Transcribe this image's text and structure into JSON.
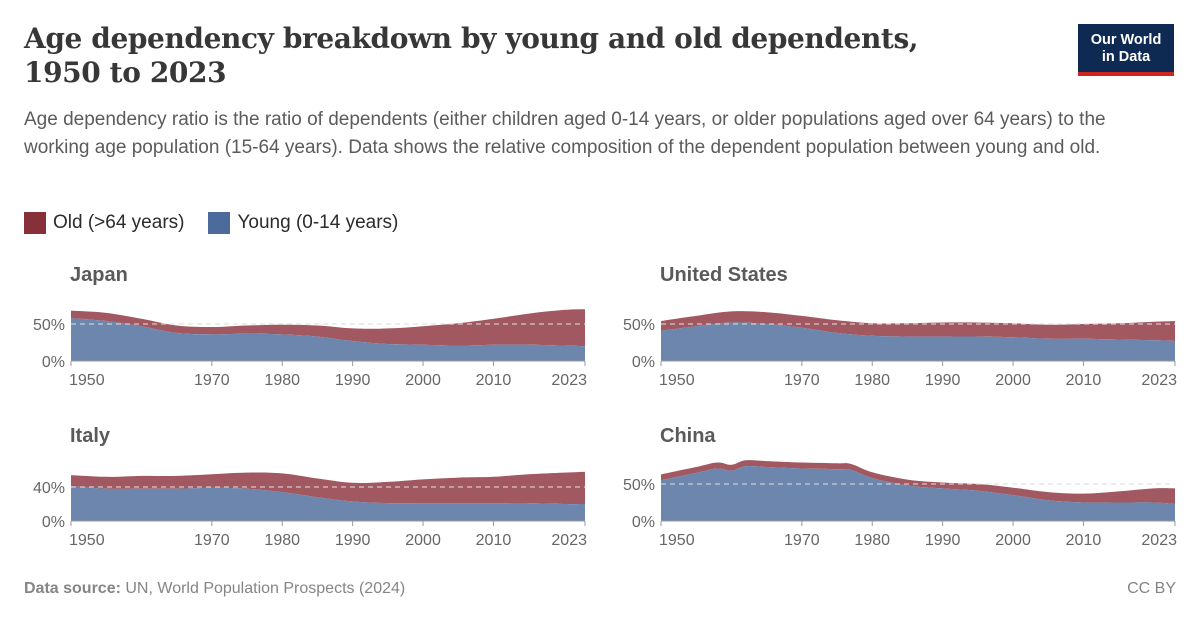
{
  "header": {
    "title": "Age dependency breakdown by young and old dependents, 1950 to 2023",
    "logo_line1": "Our World",
    "logo_line2": "in Data",
    "subtitle": "Age dependency ratio is the ratio of dependents (either children aged 0-14 years, or older populations aged over 64 years) to the working age population (15-64 years). Data shows the relative composition of the dependent population between young and old."
  },
  "legend": [
    {
      "label": "Old (>64 years)",
      "color": "#883039"
    },
    {
      "label": "Young (0-14 years)",
      "color": "#4c6a9c"
    }
  ],
  "footer": {
    "source_label": "Data source:",
    "source_text": "UN, World Population Prospects (2024)",
    "license": "CC BY"
  },
  "chart_data": [
    {
      "type": "area",
      "stacked": true,
      "title": "Japan",
      "x": [
        1950,
        1955,
        1960,
        1965,
        1970,
        1975,
        1980,
        1985,
        1990,
        1995,
        2000,
        2005,
        2010,
        2015,
        2020,
        2023
      ],
      "series": [
        {
          "name": "Young (0-14 years)",
          "values": [
            58,
            54,
            47,
            38,
            36,
            37,
            36,
            33,
            27,
            23,
            22,
            21,
            22,
            22,
            21,
            20
          ]
        },
        {
          "name": "Old (>64 years)",
          "values": [
            10,
            11,
            10,
            10,
            10,
            11,
            13,
            15,
            17,
            21,
            25,
            30,
            35,
            42,
            48,
            50
          ]
        }
      ],
      "yticks": [
        "0%",
        "50%"
      ],
      "ytick_values": [
        0,
        50
      ],
      "xticks": [
        "1950",
        "1970",
        "1980",
        "1990",
        "2000",
        "2010",
        "2023"
      ],
      "xtick_values": [
        1950,
        1970,
        1980,
        1990,
        2000,
        2010,
        2023
      ],
      "ylim": [
        0,
        80
      ]
    },
    {
      "type": "area",
      "stacked": true,
      "title": "United States",
      "x": [
        1950,
        1955,
        1960,
        1965,
        1970,
        1975,
        1980,
        1985,
        1990,
        1995,
        2000,
        2005,
        2010,
        2015,
        2020,
        2023
      ],
      "series": [
        {
          "name": "Young (0-14 years)",
          "values": [
            41,
            47,
            52,
            50,
            45,
            38,
            34,
            33,
            33,
            33,
            32,
            30,
            30,
            29,
            28,
            27
          ]
        },
        {
          "name": "Old (>64 years)",
          "values": [
            13,
            14,
            15,
            16,
            16,
            17,
            17,
            18,
            19,
            19,
            19,
            19,
            20,
            22,
            25,
            27
          ]
        }
      ],
      "yticks": [
        "0%",
        "50%"
      ],
      "ytick_values": [
        0,
        50
      ],
      "xticks": [
        "1950",
        "1970",
        "1980",
        "1990",
        "2000",
        "2010",
        "2023"
      ],
      "xtick_values": [
        1950,
        1970,
        1980,
        1990,
        2000,
        2010,
        2023
      ],
      "ylim": [
        0,
        80
      ]
    },
    {
      "type": "area",
      "stacked": true,
      "title": "Italy",
      "x": [
        1950,
        1955,
        1960,
        1965,
        1970,
        1975,
        1980,
        1985,
        1990,
        1995,
        2000,
        2005,
        2010,
        2015,
        2020,
        2023
      ],
      "series": [
        {
          "name": "Young (0-14 years)",
          "values": [
            41,
            38,
            38,
            38,
            39,
            38,
            34,
            28,
            23,
            21,
            21,
            21,
            21,
            21,
            20,
            20
          ]
        },
        {
          "name": "Old (>64 years)",
          "values": [
            13,
            14,
            15,
            15,
            16,
            19,
            22,
            22,
            22,
            25,
            28,
            30,
            31,
            34,
            37,
            38
          ]
        }
      ],
      "yticks": [
        "0%",
        "40%"
      ],
      "ytick_values": [
        0,
        40
      ],
      "xticks": [
        "1950",
        "1970",
        "1980",
        "1990",
        "2000",
        "2010",
        "2023"
      ],
      "xtick_values": [
        1950,
        1970,
        1980,
        1990,
        2000,
        2010,
        2023
      ],
      "ylim": [
        0,
        70
      ]
    },
    {
      "type": "area",
      "stacked": true,
      "title": "China",
      "x": [
        1950,
        1955,
        1958,
        1960,
        1962,
        1965,
        1970,
        1975,
        1977,
        1980,
        1985,
        1990,
        1995,
        2000,
        2005,
        2010,
        2015,
        2020,
        2023
      ],
      "series": [
        {
          "name": "Young (0-14 years)",
          "values": [
            55,
            65,
            71,
            68,
            74,
            73,
            71,
            70,
            69,
            58,
            48,
            44,
            41,
            35,
            28,
            25,
            25,
            25,
            23
          ]
        },
        {
          "name": "Old (>64 years)",
          "values": [
            8,
            8,
            8,
            8,
            8,
            8,
            8,
            8,
            8,
            8,
            8,
            8,
            9,
            10,
            11,
            12,
            15,
            19,
            21
          ]
        }
      ],
      "yticks": [
        "0%",
        "50%"
      ],
      "ytick_values": [
        0,
        50
      ],
      "xticks": [
        "1950",
        "1970",
        "1980",
        "1990",
        "2000",
        "2010",
        "2023"
      ],
      "xtick_values": [
        1950,
        1970,
        1980,
        1990,
        2000,
        2010,
        2023
      ],
      "ylim": [
        0,
        85
      ]
    }
  ]
}
